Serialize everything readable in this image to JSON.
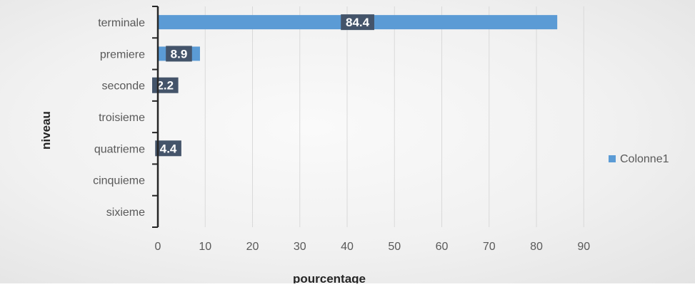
{
  "chart_data": {
    "type": "bar",
    "orientation": "horizontal",
    "categories": [
      "terminale",
      "premiere",
      "seconde",
      "troisieme",
      "quatrieme",
      "cinquieme",
      "sixieme"
    ],
    "series": [
      {
        "name": "Colonne1",
        "values": [
          84.4,
          8.9,
          2.2,
          null,
          4.4,
          null,
          null
        ]
      }
    ],
    "data_labels": [
      "84.4",
      "8.9",
      "2.2",
      "",
      "4.4",
      "",
      ""
    ],
    "xlabel": "pourcentage",
    "ylabel": "niveau",
    "xlim": [
      0,
      90
    ],
    "xticks": [
      0,
      10,
      20,
      30,
      40,
      50,
      60,
      70,
      80,
      90
    ],
    "grid": "vertical",
    "legend": "right",
    "colors": {
      "bar": "#5b9bd5",
      "label_bg": "#44546a",
      "grid": "#d9d9d9",
      "axis": "#262626",
      "text": "#595959"
    }
  }
}
